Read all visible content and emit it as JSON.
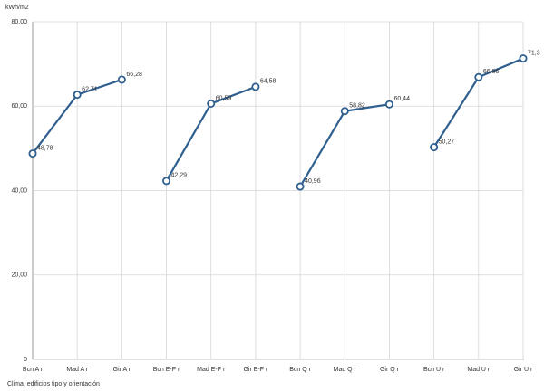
{
  "chart_data": {
    "type": "line",
    "y_label": "kWh/m2",
    "x_label": "Clima, edificios tipo y orientación",
    "categories": [
      "Bcn A r",
      "Mad A r",
      "Gir A r",
      "Bcn E-F r",
      "Mad E-F r",
      "Gir E-F r",
      "Bcn Q r",
      "Mad Q r",
      "Gir Q r",
      "Bcn U r",
      "Mad U r",
      "Gir U r"
    ],
    "series": [
      {
        "color": "#2f5f8f",
        "values": [
          48.78,
          62.71,
          66.28,
          null,
          null,
          null,
          null,
          null,
          null,
          null,
          null,
          null
        ],
        "value_labels": [
          "48,78",
          "62,71",
          "66,28",
          null,
          null,
          null,
          null,
          null,
          null,
          null,
          null,
          null
        ]
      },
      {
        "color": "#2f5f8f",
        "values": [
          null,
          null,
          null,
          42.29,
          60.59,
          64.58,
          null,
          null,
          null,
          null,
          null,
          null
        ],
        "value_labels": [
          null,
          null,
          null,
          "42,29",
          "60,59",
          "64,58",
          null,
          null,
          null,
          null,
          null,
          null
        ]
      },
      {
        "color": "#2f5f8f",
        "values": [
          null,
          null,
          null,
          null,
          null,
          null,
          40.96,
          58.82,
          60.44,
          null,
          null,
          null
        ],
        "value_labels": [
          null,
          null,
          null,
          null,
          null,
          null,
          "40,96",
          "58,82",
          "60,44",
          null,
          null,
          null
        ]
      },
      {
        "color": "#2f5f8f",
        "values": [
          null,
          null,
          null,
          null,
          null,
          null,
          null,
          null,
          null,
          50.27,
          66.86,
          71.3
        ],
        "value_labels": [
          null,
          null,
          null,
          null,
          null,
          null,
          null,
          null,
          null,
          "50,27",
          "66,86",
          "71,3"
        ]
      }
    ],
    "ylim": [
      0,
      80
    ],
    "yticks": [
      0,
      {
        "value": 20,
        "label": "20,00"
      },
      {
        "value": 40,
        "label": "40,00"
      },
      {
        "value": 60,
        "label": "60,00"
      },
      {
        "value": 80,
        "label": "80,00"
      }
    ],
    "grid": true
  }
}
